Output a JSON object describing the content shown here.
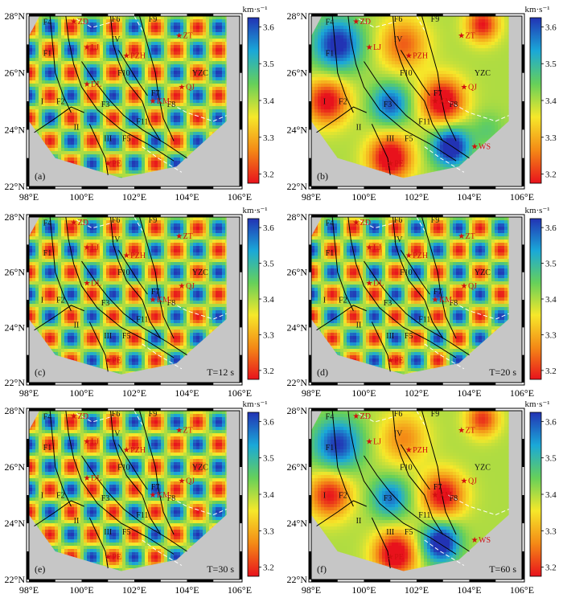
{
  "chart_data": {
    "type": "heatmap",
    "colorbar": {
      "unit": "km·s⁻¹",
      "range": [
        3.2,
        3.6
      ],
      "ticks": [
        "3.2",
        "3.3",
        "3.4",
        "3.5",
        "3.6"
      ],
      "colors": [
        "#e8121c",
        "#f48a16",
        "#f6e82a",
        "#66d05a",
        "#1aa8d8",
        "#2233b4"
      ]
    },
    "x_axis": {
      "range": [
        98,
        106
      ],
      "ticks": [
        "98°E",
        "100°E",
        "102°E",
        "104°E",
        "106°E"
      ]
    },
    "y_axis": {
      "range": [
        22,
        28
      ],
      "ticks": [
        "22°N",
        "24°N",
        "26°N",
        "28°N"
      ]
    },
    "stations": [
      {
        "name": "ZD",
        "lon": 99.7,
        "lat": 27.8
      },
      {
        "name": "LJ",
        "lon": 100.2,
        "lat": 26.9
      },
      {
        "name": "PZH",
        "lon": 101.7,
        "lat": 26.6
      },
      {
        "name": "ZT",
        "lon": 103.7,
        "lat": 27.3
      },
      {
        "name": "DL",
        "lon": 100.2,
        "lat": 25.6
      },
      {
        "name": "QJ",
        "lon": 103.8,
        "lat": 25.5
      },
      {
        "name": "KM",
        "lon": 102.7,
        "lat": 25.0
      },
      {
        "name": "PE",
        "lon": 101.0,
        "lat": 22.8
      },
      {
        "name": "WS",
        "lon": 104.2,
        "lat": 23.4
      }
    ],
    "region_labels": [
      {
        "text": "F6",
        "lon": 101.3,
        "lat": 27.8
      },
      {
        "text": "F9",
        "lon": 102.7,
        "lat": 27.8
      },
      {
        "text": "F4",
        "lon": 98.7,
        "lat": 27.7
      },
      {
        "text": "IV",
        "lon": 101.3,
        "lat": 27.1
      },
      {
        "text": "F1",
        "lon": 98.7,
        "lat": 26.6
      },
      {
        "text": "F10",
        "lon": 101.6,
        "lat": 25.9
      },
      {
        "text": "YZC",
        "lon": 104.5,
        "lat": 25.9
      },
      {
        "text": "I",
        "lon": 98.5,
        "lat": 24.9
      },
      {
        "text": "F2",
        "lon": 99.2,
        "lat": 24.9
      },
      {
        "text": "F3",
        "lon": 100.9,
        "lat": 24.8
      },
      {
        "text": "F7",
        "lon": 102.8,
        "lat": 25.2
      },
      {
        "text": "F8",
        "lon": 103.4,
        "lat": 24.8
      },
      {
        "text": "F11",
        "lon": 102.3,
        "lat": 24.2
      },
      {
        "text": "II",
        "lon": 99.8,
        "lat": 24.0
      },
      {
        "text": "III",
        "lon": 101.0,
        "lat": 23.6
      },
      {
        "text": "F5",
        "lon": 101.7,
        "lat": 23.6
      }
    ],
    "panels": [
      {
        "id": "a",
        "tag": "(a)",
        "period": "",
        "pattern": "checker",
        "kx": 0.8,
        "ky": 0.8,
        "phase": 0.0,
        "labels": [
          "ZD",
          "LJ",
          "PZH",
          "ZT",
          "DL",
          "QJ",
          "KM",
          "PE"
        ]
      },
      {
        "id": "b",
        "tag": "(b)",
        "period": "",
        "pattern": "blobs",
        "blobs": [
          {
            "lon": 99.0,
            "lat": 27.0,
            "v": 0.22,
            "r": 0.9
          },
          {
            "lon": 101.0,
            "lat": 24.9,
            "v": 0.18,
            "r": 0.7
          },
          {
            "lon": 103.3,
            "lat": 23.4,
            "v": 0.25,
            "r": 0.7
          },
          {
            "lon": 98.6,
            "lat": 25.0,
            "v": -0.22,
            "r": 0.8
          },
          {
            "lon": 103.0,
            "lat": 25.0,
            "v": -0.25,
            "r": 0.8
          },
          {
            "lon": 101.0,
            "lat": 23.0,
            "v": -0.25,
            "r": 0.8
          },
          {
            "lon": 101.5,
            "lat": 27.0,
            "v": -0.15,
            "r": 0.9
          },
          {
            "lon": 104.5,
            "lat": 27.7,
            "v": -0.2,
            "r": 0.6
          },
          {
            "lon": 104.7,
            "lat": 24.0,
            "v": 0.05,
            "r": 0.6
          }
        ],
        "labels": [
          "ZD",
          "LJ",
          "PZH",
          "ZT",
          "QJ",
          "KM",
          "PE",
          "WS"
        ]
      },
      {
        "id": "c",
        "tag": "(c)",
        "period": "T=12 s",
        "pattern": "checker",
        "kx": 0.8,
        "ky": 0.8,
        "phase": 0.0,
        "labels": [
          "ZD",
          "LJ",
          "PZH",
          "ZT",
          "DL",
          "QJ",
          "KM",
          "PE"
        ]
      },
      {
        "id": "d",
        "tag": "(d)",
        "period": "T=20 s",
        "pattern": "checker",
        "kx": 0.8,
        "ky": 0.8,
        "phase": 0.0,
        "labels": [
          "ZD",
          "LJ",
          "PZH",
          "ZT",
          "DL",
          "QJ",
          "KM",
          "PE"
        ]
      },
      {
        "id": "e",
        "tag": "(e)",
        "period": "T=30 s",
        "pattern": "checker",
        "kx": 0.8,
        "ky": 0.8,
        "phase": 0.0,
        "labels": [
          "ZD",
          "LJ",
          "PZH",
          "ZT",
          "DL",
          "QJ",
          "KM",
          "PE"
        ]
      },
      {
        "id": "f",
        "tag": "(f)",
        "period": "T=60 s",
        "pattern": "blobs",
        "blobs": [
          {
            "lon": 99.0,
            "lat": 26.8,
            "v": 0.2,
            "r": 0.9
          },
          {
            "lon": 101.0,
            "lat": 24.9,
            "v": 0.16,
            "r": 0.7
          },
          {
            "lon": 102.9,
            "lat": 23.3,
            "v": 0.25,
            "r": 0.7
          },
          {
            "lon": 98.7,
            "lat": 25.0,
            "v": -0.2,
            "r": 0.8
          },
          {
            "lon": 103.0,
            "lat": 25.0,
            "v": -0.22,
            "r": 0.8
          },
          {
            "lon": 101.2,
            "lat": 22.9,
            "v": -0.25,
            "r": 0.8
          },
          {
            "lon": 101.5,
            "lat": 27.0,
            "v": -0.12,
            "r": 0.9
          },
          {
            "lon": 104.5,
            "lat": 27.7,
            "v": -0.18,
            "r": 0.6
          }
        ],
        "labels": [
          "ZD",
          "LJ",
          "PZH",
          "ZT",
          "QJ",
          "KM",
          "PE",
          "WS"
        ]
      }
    ]
  }
}
